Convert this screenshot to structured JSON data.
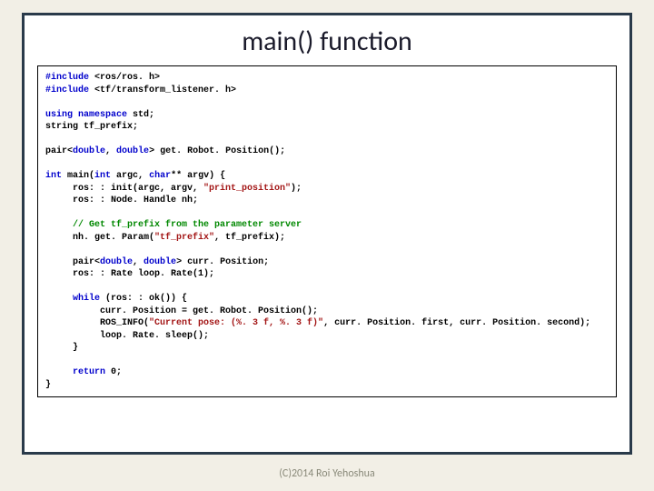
{
  "title": "main() function",
  "footer": "(C)2014 Roi Yehoshua",
  "code": {
    "l1a": "#include",
    "l1b": " <ros/ros. h>",
    "l2a": "#include",
    "l2b": " <tf/transform_listener. h>",
    "l3a": "using",
    "l3b": " ",
    "l3c": "namespace",
    "l3d": " std;",
    "l4": "string tf_prefix;",
    "l5a": "pair<",
    "l5b": "double",
    "l5c": ", ",
    "l5d": "double",
    "l5e": "> get. Robot. Position();",
    "l6a": "int",
    "l6b": " main(",
    "l6c": "int",
    "l6d": " argc, ",
    "l6e": "char",
    "l6f": "** argv) {",
    "l7a": "     ros: : init(argc, argv, ",
    "l7b": "\"print_position\"",
    "l7c": ");",
    "l8": "     ros: : Node. Handle nh;",
    "l9": "     // Get tf_prefix from the parameter server",
    "l10a": "     nh. get. Param(",
    "l10b": "\"tf_prefix\"",
    "l10c": ", tf_prefix);",
    "l11a": "     pair<",
    "l11b": "double",
    "l11c": ", ",
    "l11d": "double",
    "l11e": "> curr. Position;",
    "l12": "     ros: : Rate loop. Rate(1);",
    "l13a": "     ",
    "l13b": "while",
    "l13c": " (ros: : ok()) {",
    "l14": "          curr. Position = get. Robot. Position();",
    "l15a": "          ROS_INFO(",
    "l15b": "\"Current pose: (%. 3 f, %. 3 f)\"",
    "l15c": ", curr. Position. first, curr. Position. second);",
    "l16": "          loop. Rate. sleep();",
    "l17": "     }",
    "l18a": "     ",
    "l18b": "return",
    "l18c": " 0;",
    "l19": "}"
  }
}
